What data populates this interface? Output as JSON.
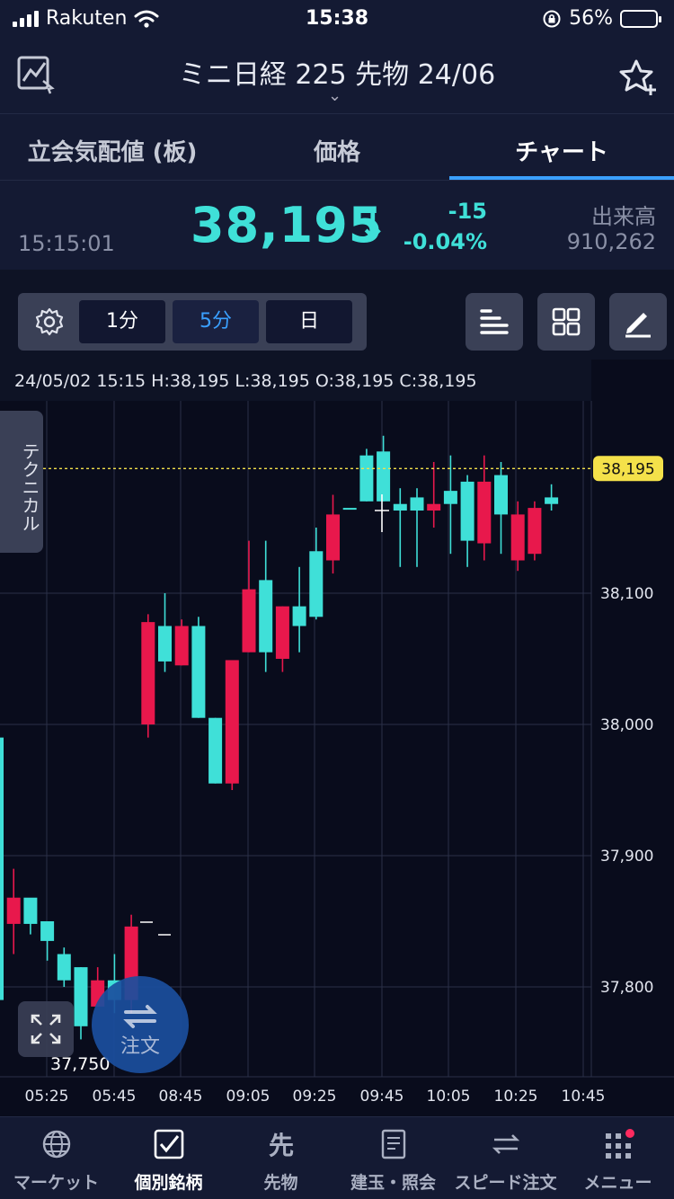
{
  "status_bar": {
    "carrier": "Rakuten",
    "time": "15:38",
    "battery": "56%"
  },
  "header": {
    "title": "ミニ日経 225 先物 24/06"
  },
  "tabs": [
    {
      "label": "立会気配値 (板)"
    },
    {
      "label": "価格"
    },
    {
      "label": "チャート"
    }
  ],
  "quote": {
    "time": "15:15:01",
    "price": "38,195",
    "arrow": "↓",
    "change": "-15",
    "change_pct": "-0.04%",
    "volume_label": "出来高",
    "volume": "910,262"
  },
  "toolbar": {
    "intervals": [
      "1分",
      "5分",
      "日"
    ],
    "active_interval": "5分"
  },
  "chart": {
    "ohlc_line": "24/05/02 15:15   H:38,195   L:38,195   O:38,195   C:38,195",
    "technical_label": "テクニカル",
    "order_label": "注文",
    "low_marker": "37,750"
  },
  "chart_data": {
    "type": "candlestick",
    "current_price": 38195,
    "current_price_label": "38,195",
    "y_ticks": [
      {
        "value": 38100,
        "label": "38,100"
      },
      {
        "value": 38000,
        "label": "38,000"
      },
      {
        "value": 37900,
        "label": "37,900"
      },
      {
        "value": 37800,
        "label": "37,800"
      }
    ],
    "x_ticks": [
      "05:25",
      "05:45",
      "08:45",
      "09:05",
      "09:25",
      "09:45",
      "10:05",
      "10:25",
      "10:45"
    ],
    "candles": [
      {
        "o": 37790,
        "h": 37990,
        "l": 37780,
        "c": 37990
      },
      {
        "o": 37868,
        "h": 37890,
        "l": 37825,
        "c": 37848
      },
      {
        "o": 37848,
        "h": 37865,
        "l": 37840,
        "c": 37868
      },
      {
        "o": 37835,
        "h": 37850,
        "l": 37820,
        "c": 37850
      },
      {
        "o": 37805,
        "h": 37830,
        "l": 37800,
        "c": 37825
      },
      {
        "o": 37770,
        "h": 37815,
        "l": 37760,
        "c": 37815
      },
      {
        "o": 37805,
        "h": 37815,
        "l": 37785,
        "c": 37785
      },
      {
        "o": 37790,
        "h": 37825,
        "l": 37780,
        "c": 37805
      },
      {
        "o": 37846,
        "h": 37855,
        "l": 37780,
        "c": 37790
      },
      {
        "o": 38078,
        "h": 38084,
        "l": 37990,
        "c": 38000
      },
      {
        "o": 38048,
        "h": 38100,
        "l": 38040,
        "c": 38075
      },
      {
        "o": 38075,
        "h": 38080,
        "l": 38045,
        "c": 38045
      },
      {
        "o": 38005,
        "h": 38082,
        "l": 38005,
        "c": 38075
      },
      {
        "o": 37955,
        "h": 38005,
        "l": 37955,
        "c": 38005
      },
      {
        "o": 38049,
        "h": 38049,
        "l": 37950,
        "c": 37955
      },
      {
        "o": 38103,
        "h": 38140,
        "l": 38055,
        "c": 38055
      },
      {
        "o": 38055,
        "h": 38140,
        "l": 38040,
        "c": 38110
      },
      {
        "o": 38090,
        "h": 38090,
        "l": 38040,
        "c": 38050
      },
      {
        "o": 38075,
        "h": 38120,
        "l": 38055,
        "c": 38090
      },
      {
        "o": 38082,
        "h": 38150,
        "l": 38080,
        "c": 38132
      },
      {
        "o": 38160,
        "h": 38175,
        "l": 38115,
        "c": 38125
      },
      {
        "o": 38165,
        "h": 38165,
        "l": 38165,
        "c": 38165
      },
      {
        "o": 38170,
        "h": 38210,
        "l": 38170,
        "c": 38205
      },
      {
        "o": 38170,
        "h": 38220,
        "l": 38170,
        "c": 38208
      },
      {
        "o": 38163,
        "h": 38180,
        "l": 38120,
        "c": 38168
      },
      {
        "o": 38163,
        "h": 38180,
        "l": 38120,
        "c": 38173
      },
      {
        "o": 38168,
        "h": 38200,
        "l": 38150,
        "c": 38163
      },
      {
        "o": 38168,
        "h": 38205,
        "l": 38130,
        "c": 38178
      },
      {
        "o": 38140,
        "h": 38190,
        "l": 38120,
        "c": 38185
      },
      {
        "o": 38185,
        "h": 38205,
        "l": 38125,
        "c": 38138
      },
      {
        "o": 38160,
        "h": 38200,
        "l": 38130,
        "c": 38190
      },
      {
        "o": 38160,
        "h": 38170,
        "l": 38117,
        "c": 38125
      },
      {
        "o": 38165,
        "h": 38170,
        "l": 38125,
        "c": 38130
      },
      {
        "o": 38168,
        "h": 38183,
        "l": 38163,
        "c": 38173
      }
    ],
    "colors": {
      "up": "#3fe0d8",
      "down": "#e8184c",
      "price_line": "#f4e14a"
    }
  },
  "nav": [
    {
      "label": "マーケット"
    },
    {
      "label": "個別銘柄"
    },
    {
      "label": "先物"
    },
    {
      "label": "建玉・照会"
    },
    {
      "label": "スピード注文"
    },
    {
      "label": "メニュー"
    }
  ],
  "colors": {
    "accent": "#3aa0ff",
    "up": "#3fe0d8",
    "down": "#e8184c",
    "background": "#0e1325"
  }
}
